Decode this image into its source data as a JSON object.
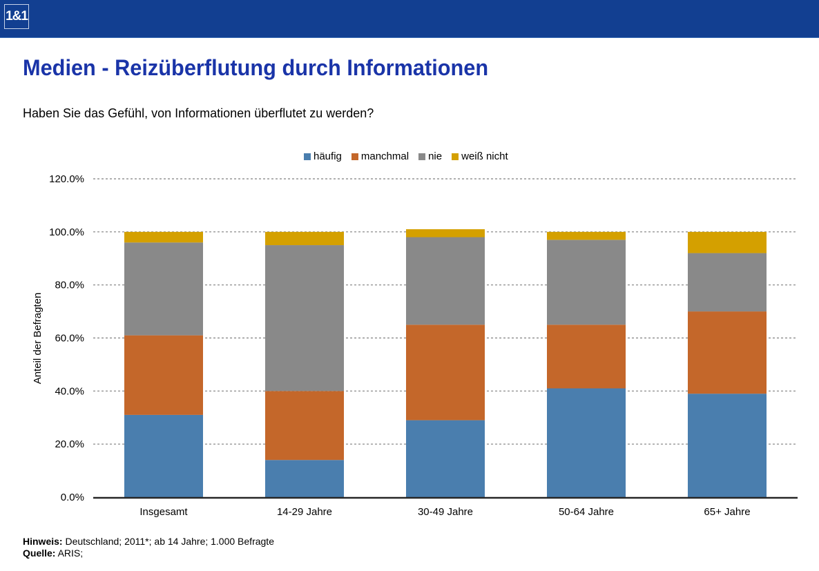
{
  "header": {
    "logo_text": "1&1",
    "background_color": "#123f91"
  },
  "page": {
    "title": "Medien - Reizüberflutung durch Informationen",
    "subtitle": "Haben Sie das Gefühl, von Informationen überflutet zu werden?",
    "title_color": "#1a34a8"
  },
  "footer": {
    "note_label": "Hinweis:",
    "note_text": " Deutschland; 2011*; ab 14 Jahre; 1.000 Befragte",
    "source_label": "Quelle:",
    "source_text": " ARIS;"
  },
  "chart_data": {
    "type": "bar",
    "stacked": true,
    "title": "",
    "xlabel": "",
    "ylabel": "Anteil der Befragten",
    "ylim": [
      0,
      120
    ],
    "yticks": [
      0,
      20,
      40,
      60,
      80,
      100,
      120
    ],
    "ytick_labels": [
      "0.0%",
      "20.0%",
      "40.0%",
      "60.0%",
      "80.0%",
      "100.0%",
      "120.0%"
    ],
    "grid": true,
    "legend_position": "top-center",
    "categories": [
      "Insgesamt",
      "14-29 Jahre",
      "30-49 Jahre",
      "50-64 Jahre",
      "65+ Jahre"
    ],
    "series": [
      {
        "name": "häufig",
        "color": "#4a7eae",
        "values": [
          31,
          14,
          29,
          41,
          39
        ]
      },
      {
        "name": "manchmal",
        "color": "#c4672a",
        "values": [
          30,
          26,
          36,
          24,
          31
        ]
      },
      {
        "name": "nie",
        "color": "#898989",
        "values": [
          35,
          55,
          33,
          32,
          22
        ]
      },
      {
        "name": "weiß nicht",
        "color": "#d4a000",
        "values": [
          4,
          5,
          3,
          3,
          8
        ]
      }
    ]
  }
}
